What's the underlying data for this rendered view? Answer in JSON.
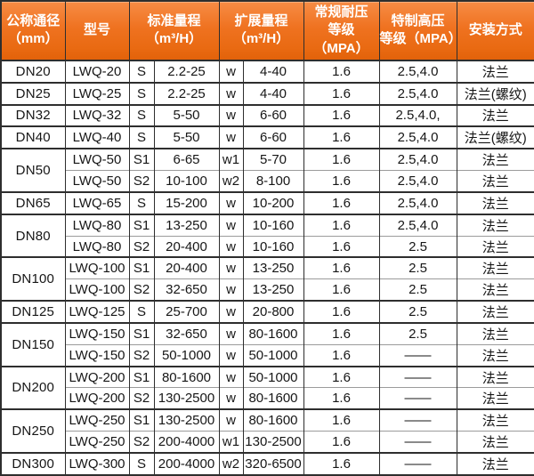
{
  "table": {
    "headers": [
      {
        "label": "公称通径\n（mm）",
        "colspan": 1
      },
      {
        "label": "型号",
        "colspan": 1
      },
      {
        "label": "标准量程\n（m³/H）",
        "colspan": 2
      },
      {
        "label": "扩展量程\n（m³/H）",
        "colspan": 2
      },
      {
        "label": "常规耐压\n等级（MPA）",
        "colspan": 1
      },
      {
        "label": "特制高压\n等级（MPA）",
        "colspan": 1
      },
      {
        "label": "安装方式",
        "colspan": 1
      }
    ],
    "rows": [
      {
        "dn": "DN20",
        "rowspan": 1,
        "model": "LWQ-20",
        "s": "S",
        "standard": "2.2-25",
        "w": "w",
        "extended": "4-40",
        "normal": "1.6",
        "special": "2.5,4.0",
        "install": "法兰"
      },
      {
        "dn": "DN25",
        "rowspan": 1,
        "model": "LWQ-25",
        "s": "S",
        "standard": "2.2-25",
        "w": "w",
        "extended": "4-40",
        "normal": "1.6",
        "special": "2.5,4.0",
        "install": "法兰(螺纹)"
      },
      {
        "dn": "DN32",
        "rowspan": 1,
        "model": "LWQ-32",
        "s": "S",
        "standard": "5-50",
        "w": "w",
        "extended": "6-60",
        "normal": "1.6",
        "special": "2.5,4.0,",
        "install": "法兰"
      },
      {
        "dn": "DN40",
        "rowspan": 1,
        "model": "LWQ-40",
        "s": "S",
        "standard": "5-50",
        "w": "w",
        "extended": "6-60",
        "normal": "1.6",
        "special": "2.5,4.0",
        "install": "法兰(螺纹)"
      },
      {
        "dn": "DN50",
        "rowspan": 2,
        "model": "LWQ-50",
        "s": "S1",
        "standard": "6-65",
        "w": "w1",
        "extended": "5-70",
        "normal": "1.6",
        "special": "2.5,4.0",
        "install": "法兰"
      },
      {
        "dn": null,
        "rowspan": 0,
        "model": "LWQ-50",
        "s": "S2",
        "standard": "10-100",
        "w": "w2",
        "extended": "8-100",
        "normal": "1.6",
        "special": "2.5,4.0",
        "install": "法兰"
      },
      {
        "dn": "DN65",
        "rowspan": 1,
        "model": "LWQ-65",
        "s": "S",
        "standard": "15-200",
        "w": "w",
        "extended": "10-200",
        "normal": "1.6",
        "special": "2.5,4.0",
        "install": "法兰"
      },
      {
        "dn": "DN80",
        "rowspan": 2,
        "model": "LWQ-80",
        "s": "S1",
        "standard": "13-250",
        "w": "w",
        "extended": "10-160",
        "normal": "1.6",
        "special": "2.5,4.0",
        "install": "法兰"
      },
      {
        "dn": null,
        "rowspan": 0,
        "model": "LWQ-80",
        "s": "S2",
        "standard": "20-400",
        "w": "w",
        "extended": "10-160",
        "normal": "1.6",
        "special": "2.5",
        "install": "法兰"
      },
      {
        "dn": "DN100",
        "rowspan": 2,
        "model": "LWQ-100",
        "s": "S1",
        "standard": "20-400",
        "w": "w",
        "extended": "13-250",
        "normal": "1.6",
        "special": "2.5",
        "install": "法兰"
      },
      {
        "dn": null,
        "rowspan": 0,
        "model": "LWQ-100",
        "s": "S2",
        "standard": "32-650",
        "w": "w",
        "extended": "13-250",
        "normal": "1.6",
        "special": "2.5",
        "install": "法兰"
      },
      {
        "dn": "DN125",
        "rowspan": 1,
        "model": "LWQ-125",
        "s": "S",
        "standard": "25-700",
        "w": "w",
        "extended": "20-800",
        "normal": "1.6",
        "special": "2.5",
        "install": "法兰"
      },
      {
        "dn": "DN150",
        "rowspan": 2,
        "model": "LWQ-150",
        "s": "S1",
        "standard": "32-650",
        "w": "w",
        "extended": "80-1600",
        "normal": "1.6",
        "special": "2.5",
        "install": "法兰"
      },
      {
        "dn": null,
        "rowspan": 0,
        "model": "LWQ-150",
        "s": "S2",
        "standard": "50-1000",
        "w": "w",
        "extended": "50-1000",
        "normal": "1.6",
        "special": "——",
        "install": "法兰"
      },
      {
        "dn": "DN200",
        "rowspan": 2,
        "model": "LWQ-200",
        "s": "S1",
        "standard": "80-1600",
        "w": "w",
        "extended": "50-1000",
        "normal": "1.6",
        "special": "——",
        "install": "法兰"
      },
      {
        "dn": null,
        "rowspan": 0,
        "model": "LWQ-200",
        "s": "S2",
        "standard": "130-2500",
        "w": "w",
        "extended": "80-1600",
        "normal": "1.6",
        "special": "——",
        "install": "法兰"
      },
      {
        "dn": "DN250",
        "rowspan": 2,
        "model": "LWQ-250",
        "s": "S1",
        "standard": "130-2500",
        "w": "w",
        "extended": "80-1600",
        "normal": "1.6",
        "special": "——",
        "install": "法兰"
      },
      {
        "dn": null,
        "rowspan": 0,
        "model": "LWQ-250",
        "s": "S2",
        "standard": "200-4000",
        "w": "w1",
        "extended": "130-2500",
        "normal": "1.6",
        "special": "——",
        "install": "法兰"
      },
      {
        "dn": "DN300",
        "rowspan": 1,
        "model": "LWQ-300",
        "s": "S",
        "standard": "200-4000",
        "w": "w2",
        "extended": "320-6500",
        "normal": "1.6",
        "special": "——",
        "install": "法兰"
      }
    ]
  },
  "colors": {
    "header_orange": "#ef7220",
    "border_dark": "#2e2e2e",
    "border_light": "#9b9b9b",
    "header_text": "#ffffff",
    "body_text": "#161616"
  }
}
